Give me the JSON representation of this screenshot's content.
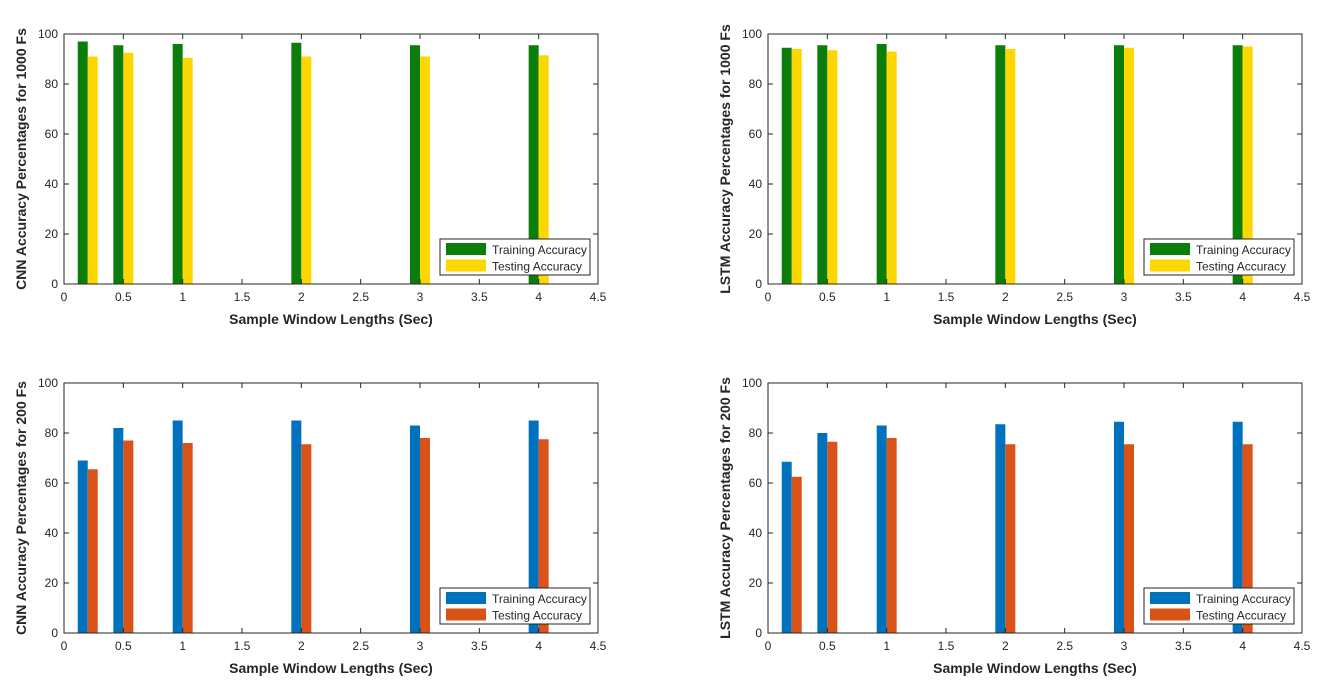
{
  "chart_data": [
    {
      "type": "bar",
      "xlabel": "Sample Window Lengths (Sec)",
      "ylabel": "CNN Accuracy Percentages for 1000 Fs",
      "xlim": [
        0,
        4.5
      ],
      "ylim": [
        0,
        100
      ],
      "xticks": [
        "0",
        "0.5",
        "1",
        "1.5",
        "2",
        "2.5",
        "3",
        "3.5",
        "4",
        "4.5"
      ],
      "yticks": [
        "0",
        "20",
        "40",
        "60",
        "80",
        "100"
      ],
      "legend_position": "bottom-right",
      "x": [
        0.2,
        0.5,
        1,
        2,
        3,
        4
      ],
      "series": [
        {
          "name": "Training Accuracy",
          "color": "#0a7d0a",
          "values": [
            97,
            95.5,
            96,
            96.5,
            95.5,
            95.5
          ]
        },
        {
          "name": "Testing Accuracy",
          "color": "#ffd700",
          "values": [
            91,
            92.5,
            90.5,
            91,
            91,
            91.5
          ]
        }
      ]
    },
    {
      "type": "bar",
      "xlabel": "Sample Window Lengths (Sec)",
      "ylabel": "LSTM Accuracy Percentages for 1000 Fs",
      "xlim": [
        0,
        4.5
      ],
      "ylim": [
        0,
        100
      ],
      "xticks": [
        "0",
        "0.5",
        "1",
        "1.5",
        "2",
        "2.5",
        "3",
        "3.5",
        "4",
        "4.5"
      ],
      "yticks": [
        "0",
        "20",
        "40",
        "60",
        "80",
        "100"
      ],
      "legend_position": "bottom-right",
      "x": [
        0.2,
        0.5,
        1,
        2,
        3,
        4
      ],
      "series": [
        {
          "name": "Training Accuracy",
          "color": "#0a7d0a",
          "values": [
            94.5,
            95.5,
            96,
            95.5,
            95.5,
            95.5
          ]
        },
        {
          "name": "Testing Accuracy",
          "color": "#ffd700",
          "values": [
            94,
            93.5,
            93,
            94,
            94.5,
            95
          ]
        }
      ]
    },
    {
      "type": "bar",
      "xlabel": "Sample Window Lengths (Sec)",
      "ylabel": "CNN Accuracy Percentages for 200 Fs",
      "xlim": [
        0,
        4.5
      ],
      "ylim": [
        0,
        100
      ],
      "xticks": [
        "0",
        "0.5",
        "1",
        "1.5",
        "2",
        "2.5",
        "3",
        "3.5",
        "4",
        "4.5"
      ],
      "yticks": [
        "0",
        "20",
        "40",
        "60",
        "80",
        "100"
      ],
      "legend_position": "bottom-right",
      "x": [
        0.2,
        0.5,
        1,
        2,
        3,
        4
      ],
      "series": [
        {
          "name": "Training Accuracy",
          "color": "#0072bd",
          "values": [
            69,
            82,
            85,
            85,
            83,
            85
          ]
        },
        {
          "name": "Testing Accuracy",
          "color": "#d95319",
          "values": [
            65.5,
            77,
            76,
            75.5,
            78,
            77.5
          ]
        }
      ]
    },
    {
      "type": "bar",
      "xlabel": "Sample Window Lengths (Sec)",
      "ylabel": "LSTM Accuracy Percentages for 200 Fs",
      "xlim": [
        0,
        4.5
      ],
      "ylim": [
        0,
        100
      ],
      "xticks": [
        "0",
        "0.5",
        "1",
        "1.5",
        "2",
        "2.5",
        "3",
        "3.5",
        "4",
        "4.5"
      ],
      "yticks": [
        "0",
        "20",
        "40",
        "60",
        "80",
        "100"
      ],
      "legend_position": "bottom-right",
      "x": [
        0.2,
        0.5,
        1,
        2,
        3,
        4
      ],
      "series": [
        {
          "name": "Training Accuracy",
          "color": "#0072bd",
          "values": [
            68.5,
            80,
            83,
            83.5,
            84.5,
            84.5
          ]
        },
        {
          "name": "Testing Accuracy",
          "color": "#d95319",
          "values": [
            62.5,
            76.5,
            78,
            75.5,
            75.5,
            75.5
          ]
        }
      ]
    }
  ]
}
